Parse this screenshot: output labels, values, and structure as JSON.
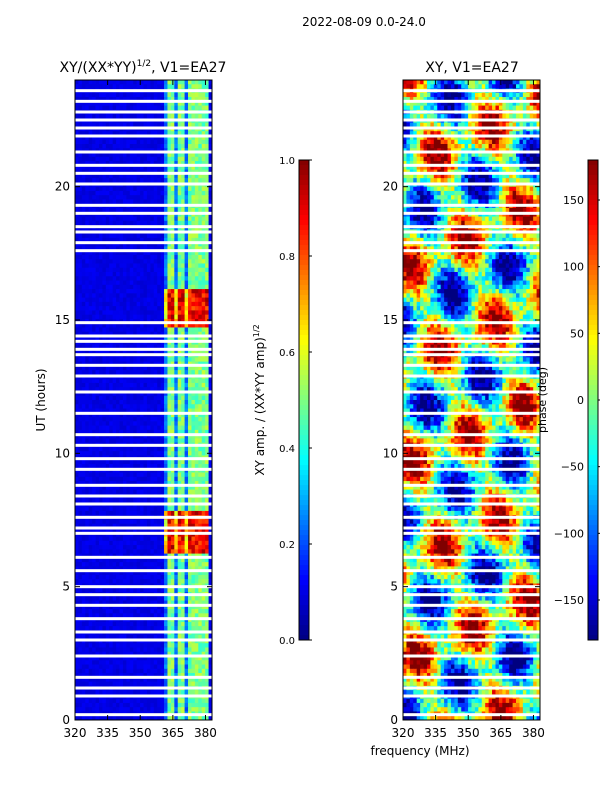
{
  "suptitle": "2022-08-09 0.0-24.0",
  "shared_xlabel": "frequency (MHz)",
  "chart_data": [
    {
      "type": "heatmap",
      "title": "XY/(XX*YY)",
      "title_exponent": "1/2",
      "title_suffix": ", V1=EA27",
      "ylabel": "UT (hours)",
      "xlabel": "frequency (MHz)",
      "xlim": [
        320,
        383
      ],
      "ylim": [
        0,
        24
      ],
      "xticks": [
        320,
        335,
        350,
        365,
        380
      ],
      "yticks": [
        0,
        5,
        10,
        15,
        20
      ],
      "colormap": "jet",
      "colorbar": {
        "label": "XY amp. / (XX*YY amp)",
        "label_exponent": "1/2",
        "range": [
          0.0,
          1.0
        ],
        "ticks": [
          "0.0",
          "0.2",
          "0.4",
          "0.6",
          "0.8",
          "1.0"
        ],
        "tick_values": [
          0.0,
          0.2,
          0.4,
          0.6,
          0.8,
          1.0
        ]
      },
      "background_value": 0.08,
      "active_band_mhz": [
        361,
        382
      ],
      "bright_channels_mhz": [
        [
          362,
          366
        ],
        [
          367,
          371
        ],
        [
          372,
          376
        ],
        [
          377,
          381
        ]
      ],
      "high_amplitude_periods_ut": [
        [
          14.7,
          16.2
        ],
        [
          6.3,
          7.8
        ]
      ],
      "flagged_rows_ut": [
        0.2,
        0.9,
        1.2,
        1.6,
        2.4,
        3.0,
        3.3,
        3.8,
        4.3,
        4.7,
        5.0,
        5.6,
        6.1,
        7.0,
        7.2,
        7.6,
        8.1,
        8.4,
        8.8,
        9.4,
        9.8,
        10.3,
        10.7,
        11.5,
        12.3,
        12.9,
        13.3,
        13.7,
        13.9,
        14.2,
        14.4,
        14.9,
        17.6,
        17.9,
        18.3,
        18.5,
        19.0,
        19.3,
        20.1,
        20.5,
        20.8,
        21.3,
        21.9,
        22.2,
        22.5,
        22.8,
        23.2,
        23.6
      ]
    },
    {
      "type": "heatmap",
      "title": "XY, V1=EA27",
      "ylabel": "",
      "xlabel": "frequency (MHz)",
      "xlim": [
        320,
        383
      ],
      "ylim": [
        0,
        24
      ],
      "xticks": [
        320,
        335,
        350,
        365,
        380
      ],
      "yticks": [
        0,
        5,
        10,
        15,
        20
      ],
      "colormap": "jet",
      "colorbar": {
        "label": "phase (deg)",
        "range": [
          -180,
          180
        ],
        "ticks": [
          "−150",
          "−100",
          "−50",
          "0",
          "50",
          "100",
          "150"
        ],
        "tick_values": [
          -150,
          -100,
          -50,
          0,
          50,
          100,
          150
        ]
      },
      "description_values": "phase varies across full range; noisy structure",
      "flagged_rows_ut": [
        0.2,
        0.9,
        1.2,
        1.6,
        2.4,
        3.0,
        3.3,
        3.8,
        4.3,
        4.7,
        5.0,
        5.6,
        6.1,
        7.0,
        7.2,
        7.6,
        8.1,
        8.4,
        8.8,
        9.4,
        9.8,
        10.3,
        10.7,
        11.5,
        12.3,
        12.9,
        13.3,
        13.7,
        13.9,
        14.2,
        14.4,
        14.9,
        17.6,
        17.9,
        18.3,
        18.5,
        19.0,
        19.3,
        20.1,
        20.5,
        20.8,
        21.3,
        21.9,
        22.2,
        22.5,
        22.8,
        23.2,
        23.6
      ]
    }
  ]
}
